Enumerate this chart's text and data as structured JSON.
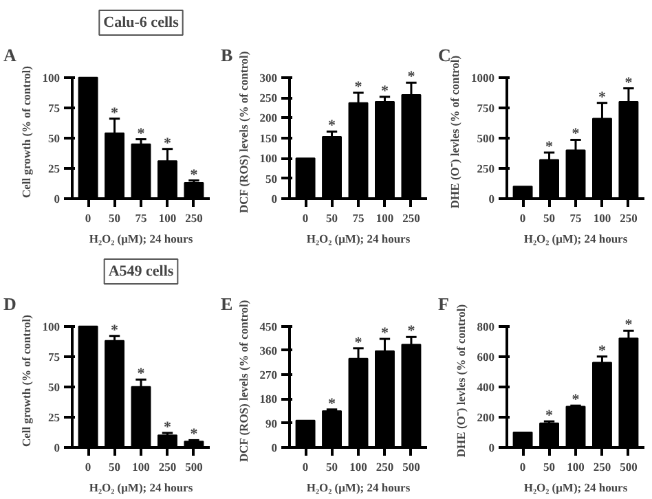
{
  "chart_data": [
    {
      "type": "bar",
      "title": "Calu-6 cells",
      "annotations": [
        "A"
      ],
      "categories": [
        "0",
        "50",
        "75",
        "100",
        "250"
      ],
      "values": [
        100,
        54,
        45,
        31,
        13
      ],
      "errors": [
        null,
        12,
        4,
        10,
        2
      ],
      "value_labels": [
        null,
        "*",
        "*",
        "*",
        "*"
      ],
      "color": "#000000",
      "ylim": [
        0,
        100
      ],
      "yticks": [
        0,
        25,
        50,
        75,
        100
      ],
      "ylabel": "Cell growth (% of control)",
      "xlabel": "H₂O₂ (μM); 24 hours",
      "grid": false
    },
    {
      "type": "bar",
      "annotations": [
        "B"
      ],
      "categories": [
        "0",
        "50",
        "75",
        "100",
        "250"
      ],
      "values": [
        100,
        153,
        237,
        240,
        257
      ],
      "errors": [
        null,
        13,
        25,
        12,
        30
      ],
      "value_labels": [
        null,
        "*",
        "*",
        "*",
        "*"
      ],
      "color": "#000000",
      "ylim": [
        0,
        300
      ],
      "yticks": [
        0,
        50,
        100,
        150,
        200,
        250,
        300
      ],
      "ylabel": "DCF (ROS) levels (% of control)",
      "xlabel": "H₂O₂ (μM); 24 hours",
      "grid": false
    },
    {
      "type": "bar",
      "annotations": [
        "C"
      ],
      "categories": [
        "0",
        "50",
        "75",
        "100",
        "250"
      ],
      "values": [
        100,
        320,
        400,
        660,
        800
      ],
      "errors": [
        null,
        60,
        85,
        130,
        110
      ],
      "value_labels": [
        null,
        "*",
        "*",
        "*",
        "*"
      ],
      "color": "#000000",
      "ylim": [
        0,
        1000
      ],
      "yticks": [
        0,
        250,
        500,
        750,
        1000
      ],
      "ylabel": "DHE (O⁻) levles (% of control)",
      "xlabel": "H₂O₂ (μM); 24 hours",
      "grid": false
    },
    {
      "type": "bar",
      "title": "A549 cells",
      "annotations": [
        "D"
      ],
      "categories": [
        "0",
        "50",
        "100",
        "250",
        "500"
      ],
      "values": [
        100,
        88,
        50,
        10,
        5
      ],
      "errors": [
        null,
        4,
        6,
        2,
        1
      ],
      "value_labels": [
        null,
        "*",
        "*",
        "*",
        "*"
      ],
      "color": "#000000",
      "ylim": [
        0,
        100
      ],
      "yticks": [
        0,
        25,
        50,
        75,
        100
      ],
      "ylabel": "Cell growth (% of control)",
      "xlabel": "H₂O₂ (μM); 24 hours",
      "grid": false
    },
    {
      "type": "bar",
      "annotations": [
        "E"
      ],
      "categories": [
        "0",
        "50",
        "100",
        "250",
        "500"
      ],
      "values": [
        100,
        135,
        330,
        358,
        382
      ],
      "errors": [
        null,
        6,
        38,
        45,
        28
      ],
      "value_labels": [
        null,
        "*",
        "*",
        "*",
        "*"
      ],
      "color": "#000000",
      "ylim": [
        0,
        450
      ],
      "yticks": [
        0,
        90,
        180,
        270,
        360,
        450
      ],
      "ylabel": "DCF (ROS) levels (% of control)",
      "xlabel": "H₂O₂ (μM); 24 hours",
      "grid": false
    },
    {
      "type": "bar",
      "annotations": [
        "F"
      ],
      "categories": [
        "0",
        "50",
        "100",
        "250",
        "500"
      ],
      "values": [
        100,
        160,
        270,
        560,
        720
      ],
      "errors": [
        null,
        12,
        6,
        40,
        50
      ],
      "value_labels": [
        null,
        "*",
        "*",
        "*",
        "*"
      ],
      "color": "#000000",
      "ylim": [
        0,
        800
      ],
      "yticks": [
        0,
        200,
        400,
        600,
        800
      ],
      "ylabel": "DHE (O⁻) levles (% of control)",
      "xlabel": "H₂O₂ (μM); 24 hours",
      "grid": false
    }
  ]
}
